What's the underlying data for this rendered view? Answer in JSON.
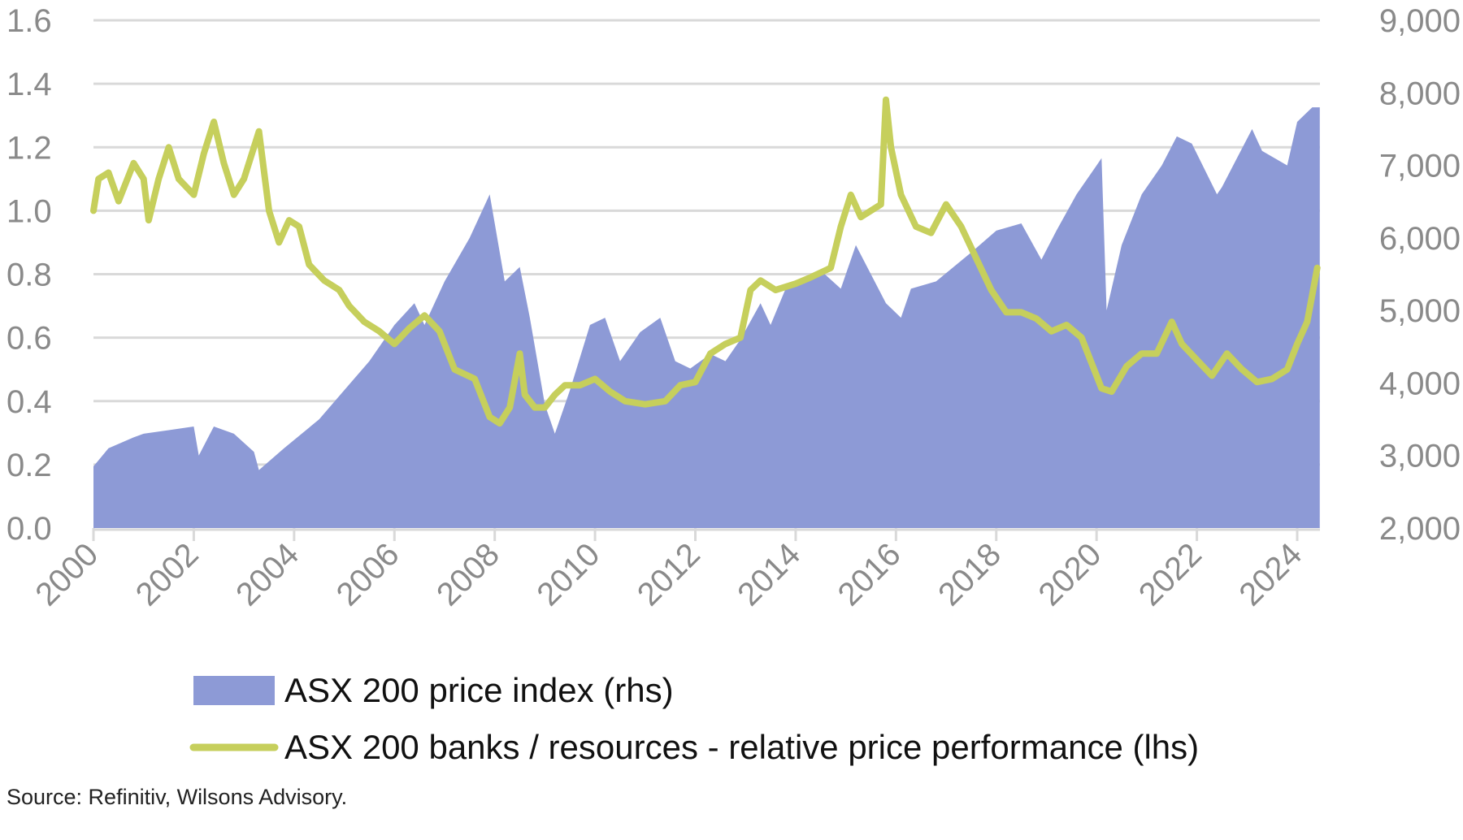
{
  "chart_data": {
    "type": "area+line",
    "title": "",
    "x_range": [
      2000,
      2024.45
    ],
    "x_ticks": [
      "2000",
      "2002",
      "2004",
      "2006",
      "2008",
      "2010",
      "2012",
      "2014",
      "2016",
      "2018",
      "2020",
      "2022",
      "2024"
    ],
    "y_left": {
      "range": [
        0,
        1.6
      ],
      "ticks": [
        "0.0",
        "0.2",
        "0.4",
        "0.6",
        "0.8",
        "1.0",
        "1.2",
        "1.4",
        "1.6"
      ]
    },
    "y_right": {
      "range": [
        2000,
        9000
      ],
      "ticks": [
        "2,000",
        "3,000",
        "4,000",
        "5,000",
        "6,000",
        "7,000",
        "8,000",
        "9,000"
      ]
    },
    "grid": true,
    "legend_placement": "bottom",
    "colors": {
      "area": "#8d9ad6",
      "line": "#c6cf5c",
      "grid": "#d9d9d9",
      "tick": "#8a8a8a"
    },
    "series": [
      {
        "name": "ASX 200 price index (rhs)",
        "type": "area",
        "axis": "right",
        "points": [
          [
            2000.0,
            2850
          ],
          [
            2000.3,
            3100
          ],
          [
            2000.8,
            3250
          ],
          [
            2001.0,
            3300
          ],
          [
            2001.5,
            3350
          ],
          [
            2002.0,
            3400
          ],
          [
            2002.1,
            3000
          ],
          [
            2002.4,
            3400
          ],
          [
            2002.8,
            3300
          ],
          [
            2003.2,
            3050
          ],
          [
            2003.3,
            2800
          ],
          [
            2003.8,
            3100
          ],
          [
            2004.5,
            3500
          ],
          [
            2005.0,
            3900
          ],
          [
            2005.5,
            4300
          ],
          [
            2006.0,
            4800
          ],
          [
            2006.4,
            5100
          ],
          [
            2006.6,
            4800
          ],
          [
            2007.0,
            5400
          ],
          [
            2007.5,
            6000
          ],
          [
            2007.9,
            6600
          ],
          [
            2008.0,
            6200
          ],
          [
            2008.2,
            5400
          ],
          [
            2008.5,
            5600
          ],
          [
            2008.7,
            4900
          ],
          [
            2009.0,
            3700
          ],
          [
            2009.2,
            3300
          ],
          [
            2009.5,
            3900
          ],
          [
            2009.9,
            4800
          ],
          [
            2010.2,
            4900
          ],
          [
            2010.5,
            4300
          ],
          [
            2010.9,
            4700
          ],
          [
            2011.3,
            4900
          ],
          [
            2011.6,
            4300
          ],
          [
            2011.9,
            4200
          ],
          [
            2012.3,
            4400
          ],
          [
            2012.6,
            4300
          ],
          [
            2012.9,
            4600
          ],
          [
            2013.3,
            5100
          ],
          [
            2013.5,
            4800
          ],
          [
            2013.8,
            5300
          ],
          [
            2014.2,
            5400
          ],
          [
            2014.5,
            5550
          ],
          [
            2014.9,
            5300
          ],
          [
            2015.2,
            5900
          ],
          [
            2015.5,
            5500
          ],
          [
            2015.8,
            5100
          ],
          [
            2016.1,
            4900
          ],
          [
            2016.3,
            5300
          ],
          [
            2016.8,
            5400
          ],
          [
            2017.5,
            5800
          ],
          [
            2018.0,
            6100
          ],
          [
            2018.5,
            6200
          ],
          [
            2018.9,
            5700
          ],
          [
            2019.2,
            6100
          ],
          [
            2019.6,
            6600
          ],
          [
            2020.0,
            7000
          ],
          [
            2020.1,
            7100
          ],
          [
            2020.2,
            5000
          ],
          [
            2020.5,
            5900
          ],
          [
            2020.9,
            6600
          ],
          [
            2021.3,
            7000
          ],
          [
            2021.6,
            7400
          ],
          [
            2021.9,
            7300
          ],
          [
            2022.4,
            6600
          ],
          [
            2022.5,
            6700
          ],
          [
            2022.8,
            7100
          ],
          [
            2023.1,
            7500
          ],
          [
            2023.3,
            7200
          ],
          [
            2023.8,
            7000
          ],
          [
            2024.0,
            7600
          ],
          [
            2024.3,
            7800
          ],
          [
            2024.45,
            7800
          ]
        ]
      },
      {
        "name": "ASX 200 banks / resources - relative price performance (lhs)",
        "type": "line",
        "axis": "left",
        "points": [
          [
            2000.0,
            1.0
          ],
          [
            2000.1,
            1.1
          ],
          [
            2000.3,
            1.12
          ],
          [
            2000.5,
            1.03
          ],
          [
            2000.8,
            1.15
          ],
          [
            2001.0,
            1.1
          ],
          [
            2001.1,
            0.97
          ],
          [
            2001.3,
            1.1
          ],
          [
            2001.5,
            1.2
          ],
          [
            2001.7,
            1.1
          ],
          [
            2002.0,
            1.05
          ],
          [
            2002.2,
            1.18
          ],
          [
            2002.4,
            1.28
          ],
          [
            2002.6,
            1.15
          ],
          [
            2002.8,
            1.05
          ],
          [
            2003.0,
            1.1
          ],
          [
            2003.3,
            1.25
          ],
          [
            2003.5,
            1.0
          ],
          [
            2003.7,
            0.9
          ],
          [
            2003.9,
            0.97
          ],
          [
            2004.1,
            0.95
          ],
          [
            2004.3,
            0.83
          ],
          [
            2004.6,
            0.78
          ],
          [
            2004.9,
            0.75
          ],
          [
            2005.1,
            0.7
          ],
          [
            2005.4,
            0.65
          ],
          [
            2005.7,
            0.62
          ],
          [
            2006.0,
            0.58
          ],
          [
            2006.3,
            0.63
          ],
          [
            2006.6,
            0.67
          ],
          [
            2006.9,
            0.62
          ],
          [
            2007.2,
            0.5
          ],
          [
            2007.6,
            0.47
          ],
          [
            2007.9,
            0.35
          ],
          [
            2008.1,
            0.33
          ],
          [
            2008.3,
            0.38
          ],
          [
            2008.5,
            0.55
          ],
          [
            2008.6,
            0.42
          ],
          [
            2008.8,
            0.38
          ],
          [
            2009.0,
            0.38
          ],
          [
            2009.2,
            0.42
          ],
          [
            2009.4,
            0.45
          ],
          [
            2009.7,
            0.45
          ],
          [
            2010.0,
            0.47
          ],
          [
            2010.3,
            0.43
          ],
          [
            2010.6,
            0.4
          ],
          [
            2011.0,
            0.39
          ],
          [
            2011.4,
            0.4
          ],
          [
            2011.7,
            0.45
          ],
          [
            2012.0,
            0.46
          ],
          [
            2012.3,
            0.55
          ],
          [
            2012.6,
            0.58
          ],
          [
            2012.9,
            0.6
          ],
          [
            2013.1,
            0.75
          ],
          [
            2013.3,
            0.78
          ],
          [
            2013.6,
            0.75
          ],
          [
            2014.0,
            0.77
          ],
          [
            2014.3,
            0.79
          ],
          [
            2014.7,
            0.82
          ],
          [
            2014.9,
            0.95
          ],
          [
            2015.1,
            1.05
          ],
          [
            2015.3,
            0.98
          ],
          [
            2015.5,
            1.0
          ],
          [
            2015.7,
            1.02
          ],
          [
            2015.8,
            1.35
          ],
          [
            2015.9,
            1.2
          ],
          [
            2016.1,
            1.05
          ],
          [
            2016.4,
            0.95
          ],
          [
            2016.7,
            0.93
          ],
          [
            2017.0,
            1.02
          ],
          [
            2017.3,
            0.95
          ],
          [
            2017.6,
            0.85
          ],
          [
            2017.9,
            0.75
          ],
          [
            2018.2,
            0.68
          ],
          [
            2018.5,
            0.68
          ],
          [
            2018.8,
            0.66
          ],
          [
            2019.1,
            0.62
          ],
          [
            2019.4,
            0.64
          ],
          [
            2019.7,
            0.6
          ],
          [
            2019.9,
            0.52
          ],
          [
            2020.1,
            0.44
          ],
          [
            2020.3,
            0.43
          ],
          [
            2020.6,
            0.51
          ],
          [
            2020.9,
            0.55
          ],
          [
            2021.2,
            0.55
          ],
          [
            2021.5,
            0.65
          ],
          [
            2021.7,
            0.58
          ],
          [
            2022.0,
            0.53
          ],
          [
            2022.3,
            0.48
          ],
          [
            2022.6,
            0.55
          ],
          [
            2022.9,
            0.5
          ],
          [
            2023.2,
            0.46
          ],
          [
            2023.5,
            0.47
          ],
          [
            2023.8,
            0.5
          ],
          [
            2024.0,
            0.58
          ],
          [
            2024.2,
            0.65
          ],
          [
            2024.4,
            0.82
          ]
        ]
      }
    ],
    "source": "Source: Refinitiv, Wilsons Advisory."
  }
}
